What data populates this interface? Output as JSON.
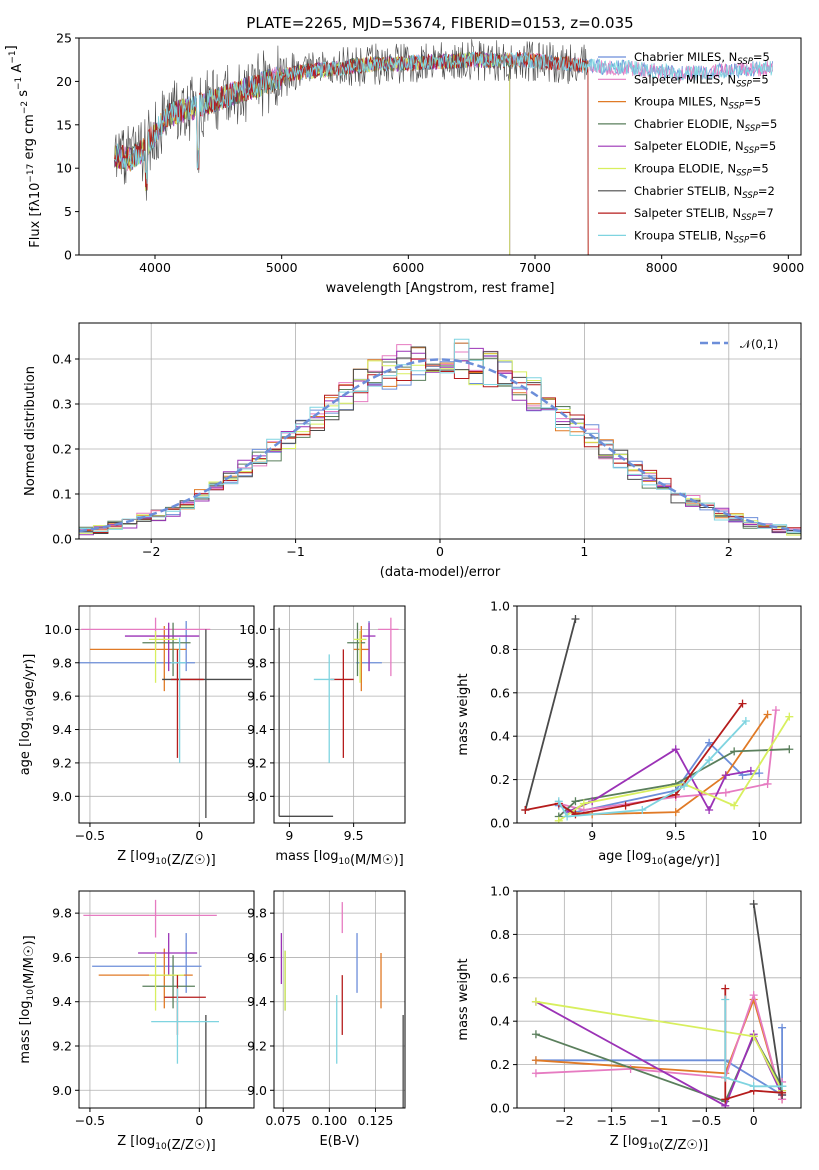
{
  "figure": {
    "title": "PLATE=2265, MJD=53674, FIBERID=0153, z=0.035"
  },
  "colors": [
    "#6c8ed9",
    "#e07a26",
    "#e67bc1",
    "#5a7f5c",
    "#9b32b6",
    "#d8ef5e",
    "#4a4a4a",
    "#b51c1c",
    "#7fd4e0"
  ],
  "chart_data": [
    {
      "id": "spectrum",
      "type": "line",
      "xlabel": "wavelength [Angstrom, rest frame]",
      "ylabel": "Flux [f_λ10^-17 erg cm^-2 s^-1 A^-1]",
      "xlim": [
        3400,
        9100
      ],
      "ylim": [
        0,
        25
      ],
      "xticks": [
        4000,
        5000,
        6000,
        7000,
        8000,
        9000
      ],
      "yticks": [
        0,
        5,
        10,
        15,
        20,
        25
      ],
      "grid": false,
      "legend_position": "right",
      "continuum": {
        "x": [
          3680,
          3800,
          3900,
          4000,
          4100,
          4300,
          4500,
          4700,
          4900,
          5100,
          5300,
          5500,
          5700,
          5900,
          6100,
          6300,
          6500,
          6700,
          6900,
          7100,
          7300,
          7500,
          7700,
          7900,
          8100,
          8300,
          8500,
          8700,
          8900
        ],
        "y": [
          11.5,
          11.0,
          12.0,
          14.0,
          16.0,
          17.0,
          18.0,
          19.0,
          20.0,
          21.0,
          21.3,
          21.6,
          22.0,
          22.0,
          22.2,
          22.3,
          22.5,
          22.4,
          22.5,
          22.2,
          22.0,
          21.7,
          21.6,
          21.3,
          21.0,
          21.0,
          21.2,
          21.4,
          21.6
        ]
      },
      "series": [
        {
          "name": "Chabrier MILES, N_SSP=5",
          "color": "#6c8ed9",
          "drop_at": null
        },
        {
          "name": "Salpeter MILES, N_SSP=5",
          "color": "#e67bc1",
          "drop_at": null
        },
        {
          "name": "Kroupa MILES, N_SSP=5",
          "color": "#e07a26",
          "drop_at": 7420
        },
        {
          "name": "Chabrier ELODIE, N_SSP=5",
          "color": "#5a7f5c",
          "drop_at": 6800
        },
        {
          "name": "Salpeter ELODIE, N_SSP=5",
          "color": "#9b32b6",
          "drop_at": 6800
        },
        {
          "name": "Kroupa ELODIE, N_SSP=5",
          "color": "#d8ef5e",
          "drop_at": 6800
        },
        {
          "name": "Chabrier STELIB, N_SSP=2",
          "color": "#4a4a4a",
          "drop_at": 7420
        },
        {
          "name": "Salpeter STELIB, N_SSP=7",
          "color": "#b51c1c",
          "drop_at": 7420
        },
        {
          "name": "Kroupa STELIB, N_SSP=6",
          "color": "#7fd4e0",
          "drop_at": null
        }
      ]
    },
    {
      "id": "residual-hist",
      "type": "histogram",
      "xlabel": "(data-model)/error",
      "ylabel": "Normed distribution",
      "xlim": [
        -2.5,
        2.5
      ],
      "ylim": [
        0,
        0.48
      ],
      "xticks": [
        -2,
        -1,
        0,
        1,
        2
      ],
      "yticks": [
        0.0,
        0.1,
        0.2,
        0.3,
        0.4
      ],
      "grid": true,
      "legend_position": "top-right",
      "reference_curve": {
        "name": "𝒩(0,1)",
        "color": "#6c8ed9",
        "style": "dashed"
      },
      "bin_width": 0.1
    },
    {
      "id": "age-vs-Z",
      "type": "errorbar",
      "xlabel": "Z [log10(Z/Z☉)]",
      "ylabel": "age [log10(age/yr)]",
      "xlim": [
        -0.55,
        0.25
      ],
      "ylim": [
        8.84,
        10.14
      ],
      "xticks": [
        -0.5,
        0.0
      ],
      "yticks": [
        9.0,
        9.2,
        9.4,
        9.6,
        9.8,
        10.0
      ],
      "grid": true,
      "points": [
        {
          "color": "#6c8ed9",
          "x": -0.06,
          "xerr": [
            0.5,
            0.04
          ],
          "y": 9.8,
          "yerr": [
            0.05,
            0.25
          ]
        },
        {
          "color": "#e07a26",
          "x": -0.16,
          "xerr": [
            0.34,
            0.1
          ],
          "y": 9.88,
          "yerr": [
            0.25,
            0.14
          ]
        },
        {
          "color": "#e67bc1",
          "x": -0.2,
          "xerr": [
            0.34,
            0.25
          ],
          "y": 10.0,
          "yerr": [
            0.12,
            0.07
          ]
        },
        {
          "color": "#5a7f5c",
          "x": -0.12,
          "xerr": [
            0.14,
            0.08
          ],
          "y": 9.92,
          "yerr": [
            0.2,
            0.12
          ]
        },
        {
          "color": "#9b32b6",
          "x": -0.14,
          "xerr": [
            0.2,
            0.14
          ],
          "y": 9.96,
          "yerr": [
            0.21,
            0.08
          ]
        },
        {
          "color": "#d8ef5e",
          "x": -0.2,
          "xerr": [
            0.03,
            0.1
          ],
          "y": 9.94,
          "yerr": [
            0.26,
            0.05
          ]
        },
        {
          "color": "#4a4a4a",
          "x": 0.03,
          "xerr": [
            0.2,
            0.21
          ],
          "y": 9.7,
          "yerr": [
            0.83,
            0.3
          ]
        },
        {
          "color": "#b51c1c",
          "x": -0.1,
          "xerr": [
            0.03,
            0.12
          ],
          "y": 9.7,
          "yerr": [
            0.47,
            0.18
          ]
        },
        {
          "color": "#7fd4e0",
          "x": -0.09,
          "xerr": [
            0.04,
            0.03
          ],
          "y": 9.8,
          "yerr": [
            0.6,
            0.15
          ]
        }
      ]
    },
    {
      "id": "age-vs-mass",
      "type": "errorbar",
      "xlabel": "mass [log10(M/M☉)]",
      "ylabel": "",
      "xlim": [
        8.88,
        9.9
      ],
      "ylim": [
        8.84,
        10.14
      ],
      "xticks": [
        9.0,
        9.5
      ],
      "yticks": [
        9.0,
        9.2,
        9.4,
        9.6,
        9.8,
        10.0
      ],
      "grid": true,
      "points": [
        {
          "color": "#6c8ed9",
          "x": 9.62,
          "xerr": [
            0.1,
            0.1
          ],
          "y": 9.8,
          "yerr": [
            0.05,
            0.25
          ]
        },
        {
          "color": "#e07a26",
          "x": 9.56,
          "xerr": [
            0.06,
            0.06
          ],
          "y": 9.88,
          "yerr": [
            0.25,
            0.14
          ]
        },
        {
          "color": "#e67bc1",
          "x": 9.79,
          "xerr": [
            0.1,
            0.06
          ],
          "y": 10.0,
          "yerr": [
            0.28,
            0.07
          ]
        },
        {
          "color": "#5a7f5c",
          "x": 9.53,
          "xerr": [
            0.08,
            0.06
          ],
          "y": 9.92,
          "yerr": [
            0.2,
            0.12
          ]
        },
        {
          "color": "#9b32b6",
          "x": 9.62,
          "xerr": [
            0.05,
            0.05
          ],
          "y": 9.96,
          "yerr": [
            0.21,
            0.08
          ]
        },
        {
          "color": "#d8ef5e",
          "x": 9.55,
          "xerr": [
            0.05,
            0.05
          ],
          "y": 9.94,
          "yerr": [
            0.26,
            0.05
          ]
        },
        {
          "color": "#4a4a4a",
          "x": 8.92,
          "xerr": [
            0.0,
            0.42
          ],
          "y": 8.88,
          "yerr": [
            0.0,
            1.13
          ]
        },
        {
          "color": "#b51c1c",
          "x": 9.42,
          "xerr": [
            0.1,
            0.08
          ],
          "y": 9.7,
          "yerr": [
            0.47,
            0.18
          ]
        },
        {
          "color": "#7fd4e0",
          "x": 9.31,
          "xerr": [
            0.12,
            0.04
          ],
          "y": 9.7,
          "yerr": [
            0.5,
            0.15
          ]
        }
      ]
    },
    {
      "id": "weight-vs-age",
      "type": "line",
      "xlabel": "age [log10(age/yr)]",
      "ylabel": "mass weight",
      "xlim": [
        8.55,
        10.25
      ],
      "ylim": [
        0.0,
        1.0
      ],
      "xticks": [
        9.0,
        9.5,
        10.0
      ],
      "yticks": [
        0.0,
        0.2,
        0.4,
        0.6,
        0.8,
        1.0
      ],
      "grid": true,
      "series": [
        {
          "color": "#6c8ed9",
          "x": [
            8.8,
            8.9,
            9.5,
            9.7,
            9.9,
            10.0
          ],
          "y": [
            0.08,
            0.05,
            0.15,
            0.37,
            0.22,
            0.23
          ]
        },
        {
          "color": "#e07a26",
          "x": [
            8.85,
            9.0,
            9.5,
            9.8,
            10.05
          ],
          "y": [
            0.05,
            0.04,
            0.05,
            0.22,
            0.5
          ]
        },
        {
          "color": "#e67bc1",
          "x": [
            8.8,
            8.95,
            9.5,
            9.8,
            10.05,
            10.1
          ],
          "y": [
            0.09,
            0.06,
            0.12,
            0.14,
            0.18,
            0.52
          ]
        },
        {
          "color": "#5a7f5c",
          "x": [
            8.8,
            8.9,
            9.5,
            9.85,
            10.18
          ],
          "y": [
            0.03,
            0.1,
            0.18,
            0.33,
            0.34
          ]
        },
        {
          "color": "#9b32b6",
          "x": [
            8.85,
            9.0,
            9.5,
            9.7,
            9.8,
            9.95
          ],
          "y": [
            0.05,
            0.1,
            0.34,
            0.06,
            0.22,
            0.24
          ]
        },
        {
          "color": "#d8ef5e",
          "x": [
            8.8,
            8.95,
            9.55,
            9.85,
            10.18
          ],
          "y": [
            0.01,
            0.09,
            0.18,
            0.08,
            0.49
          ]
        },
        {
          "color": "#4a4a4a",
          "x": [
            8.6,
            8.9
          ],
          "y": [
            0.06,
            0.94
          ]
        },
        {
          "color": "#b51c1c",
          "x": [
            8.6,
            8.8,
            8.9,
            9.2,
            9.5,
            9.9
          ],
          "y": [
            0.06,
            0.09,
            0.04,
            0.08,
            0.13,
            0.55
          ]
        },
        {
          "color": "#7fd4e0",
          "x": [
            8.8,
            8.85,
            9.3,
            9.55,
            9.7,
            9.92
          ],
          "y": [
            0.1,
            0.03,
            0.06,
            0.17,
            0.29,
            0.47
          ]
        }
      ]
    },
    {
      "id": "mass-vs-Z",
      "type": "errorbar",
      "xlabel": "Z [log10(Z/Z☉)]",
      "ylabel": "mass [log10(M/M☉)]",
      "xlim": [
        -0.55,
        0.25
      ],
      "ylim": [
        8.92,
        9.9
      ],
      "xticks": [
        -0.5,
        0.0
      ],
      "yticks": [
        9.0,
        9.2,
        9.4,
        9.6,
        9.8
      ],
      "grid": true,
      "points": [
        {
          "color": "#6c8ed9",
          "x": -0.06,
          "xerr": [
            0.43,
            0.07
          ],
          "y": 9.56,
          "yerr": [
            0.12,
            0.15
          ]
        },
        {
          "color": "#e07a26",
          "x": -0.16,
          "xerr": [
            0.3,
            0.13
          ],
          "y": 9.52,
          "yerr": [
            0.15,
            0.12
          ]
        },
        {
          "color": "#e67bc1",
          "x": -0.2,
          "xerr": [
            0.33,
            0.28
          ],
          "y": 9.79,
          "yerr": [
            0.1,
            0.07
          ]
        },
        {
          "color": "#5a7f5c",
          "x": -0.12,
          "xerr": [
            0.14,
            0.1
          ],
          "y": 9.47,
          "yerr": [
            0.1,
            0.14
          ]
        },
        {
          "color": "#9b32b6",
          "x": -0.14,
          "xerr": [
            0.14,
            0.13
          ],
          "y": 9.62,
          "yerr": [
            0.1,
            0.09
          ]
        },
        {
          "color": "#d8ef5e",
          "x": -0.2,
          "xerr": [
            0.03,
            0.13
          ],
          "y": 9.52,
          "yerr": [
            0.16,
            0.1
          ]
        },
        {
          "color": "#4a4a4a",
          "x": 0.03,
          "xerr": [
            0.0,
            0.21
          ],
          "y": 8.92,
          "yerr": [
            0.0,
            0.42
          ]
        },
        {
          "color": "#b51c1c",
          "x": -0.1,
          "xerr": [
            0.06,
            0.13
          ],
          "y": 9.42,
          "yerr": [
            0.17,
            0.1
          ]
        },
        {
          "color": "#7fd4e0",
          "x": -0.1,
          "xerr": [
            0.12,
            0.19
          ],
          "y": 9.31,
          "yerr": [
            0.19,
            0.15
          ]
        }
      ]
    },
    {
      "id": "mass-vs-ebv",
      "type": "errorbar",
      "xlabel": "E(B-V)",
      "ylabel": "",
      "xlim": [
        0.07,
        0.141
      ],
      "ylim": [
        8.92,
        9.9
      ],
      "xticks": [
        0.075,
        0.1,
        0.125
      ],
      "xtick_labels": [
        "0.075",
        "0.100",
        "0.125"
      ],
      "yticks": [
        9.0,
        9.2,
        9.4,
        9.6,
        9.8
      ],
      "grid": true,
      "points": [
        {
          "color": "#6c8ed9",
          "x": 0.115,
          "y": 9.56,
          "yerr": [
            0.12,
            0.15
          ]
        },
        {
          "color": "#e07a26",
          "x": 0.128,
          "y": 9.52,
          "yerr": [
            0.15,
            0.1
          ]
        },
        {
          "color": "#e67bc1",
          "x": 0.107,
          "y": 9.79,
          "yerr": [
            0.08,
            0.06
          ]
        },
        {
          "color": "#5a7f5c",
          "x": 0.076,
          "y": 9.52,
          "yerr": [
            0.16,
            0.11
          ]
        },
        {
          "color": "#9b32b6",
          "x": 0.074,
          "y": 9.62,
          "yerr": [
            0.14,
            0.09
          ]
        },
        {
          "color": "#d8ef5e",
          "x": 0.076,
          "y": 9.46,
          "yerr": [
            0.1,
            0.17
          ]
        },
        {
          "color": "#4a4a4a",
          "x": 0.14,
          "y": 9.14,
          "yerr": [
            0.22,
            0.2
          ]
        },
        {
          "color": "#b51c1c",
          "x": 0.107,
          "y": 9.42,
          "yerr": [
            0.17,
            0.1
          ]
        },
        {
          "color": "#7fd4e0",
          "x": 0.104,
          "y": 9.28,
          "yerr": [
            0.16,
            0.15
          ]
        }
      ]
    },
    {
      "id": "weight-vs-Z",
      "type": "line",
      "xlabel": "Z [log10(Z/Z☉)]",
      "ylabel": "mass weight",
      "xlim": [
        -2.5,
        0.5
      ],
      "ylim": [
        0.0,
        1.0
      ],
      "xticks": [
        -2.0,
        -1.5,
        -1.0,
        -0.5,
        0.0
      ],
      "yticks": [
        0.0,
        0.2,
        0.4,
        0.6,
        0.8,
        1.0
      ],
      "grid": true,
      "series": [
        {
          "color": "#6c8ed9",
          "x": [
            -2.3,
            -0.3,
            0.3,
            0.3,
            0.3
          ],
          "y": [
            0.22,
            0.22,
            0.06,
            0.37,
            0.1
          ]
        },
        {
          "color": "#e07a26",
          "x": [
            -2.3,
            -0.3,
            0.0,
            0.3,
            0.3
          ],
          "y": [
            0.22,
            0.16,
            0.5,
            0.04,
            0.08
          ]
        },
        {
          "color": "#e67bc1",
          "x": [
            -2.3,
            -1.3,
            -0.3,
            0.0,
            0.3,
            0.3
          ],
          "y": [
            0.16,
            0.18,
            0.14,
            0.52,
            0.04,
            0.12
          ]
        },
        {
          "color": "#5a7f5c",
          "x": [
            -2.3,
            -0.3,
            0.0,
            0.3,
            0.3
          ],
          "y": [
            0.34,
            0.03,
            0.33,
            0.1,
            0.1
          ]
        },
        {
          "color": "#9b32b6",
          "x": [
            -2.3,
            -0.3,
            0.0,
            0.3,
            0.3
          ],
          "y": [
            0.49,
            0.01,
            0.34,
            0.06,
            0.1
          ]
        },
        {
          "color": "#d8ef5e",
          "x": [
            -2.3,
            0.0,
            0.3,
            0.3
          ],
          "y": [
            0.49,
            0.33,
            0.08,
            0.1
          ]
        },
        {
          "color": "#4a4a4a",
          "x": [
            0.0,
            0.3
          ],
          "y": [
            0.94,
            0.06
          ]
        },
        {
          "color": "#b51c1c",
          "x": [
            -0.3,
            -0.3,
            -0.3,
            0.0,
            0.3
          ],
          "y": [
            0.55,
            0.14,
            0.04,
            0.08,
            0.07
          ]
        },
        {
          "color": "#7fd4e0",
          "x": [
            -0.3,
            -0.3,
            0.0,
            0.3,
            0.3
          ],
          "y": [
            0.5,
            0.14,
            0.1,
            0.1,
            0.1
          ]
        }
      ]
    }
  ]
}
